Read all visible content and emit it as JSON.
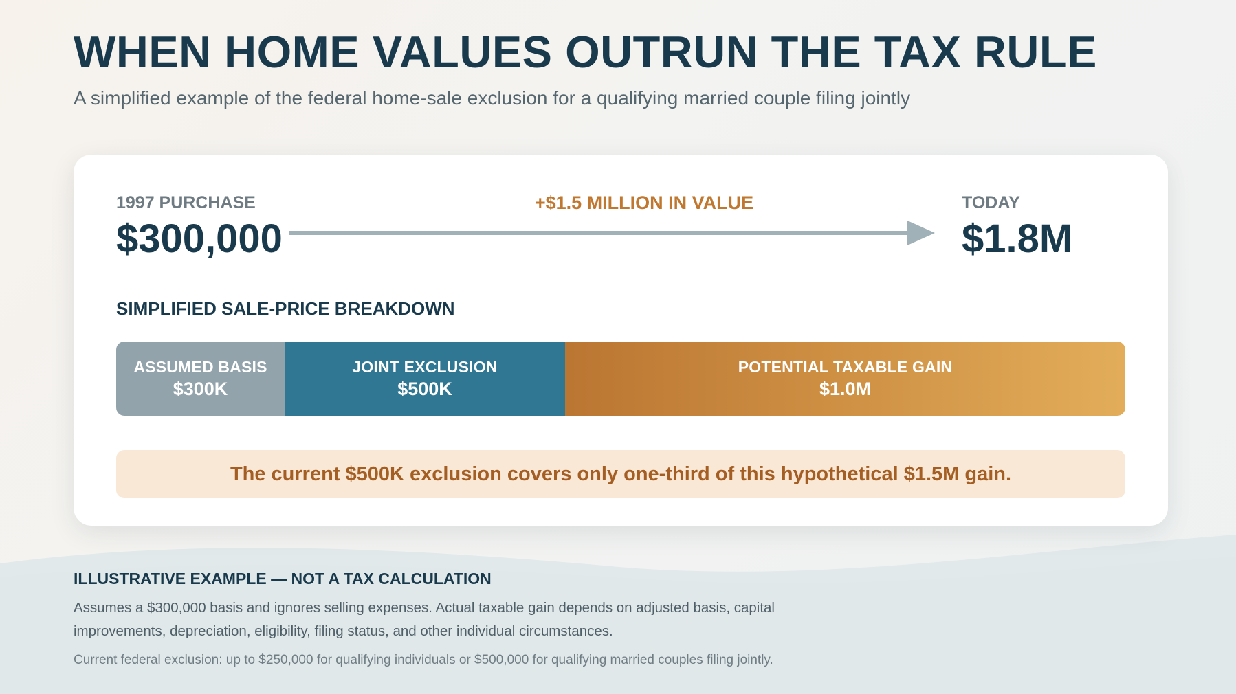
{
  "header": {
    "title": "WHEN HOME VALUES OUTRUN THE TAX RULE",
    "subtitle": "A simplified example of the federal home-sale exclusion for a qualifying married couple filing jointly"
  },
  "timeline": {
    "start_label": "1997 PURCHASE",
    "start_value": "$300,000",
    "change_label": "+$1.5 MILLION IN VALUE",
    "end_label": "TODAY",
    "end_value": "$1.8M"
  },
  "breakdown": {
    "heading": "SIMPLIFIED SALE-PRICE BREAKDOWN",
    "segments": [
      {
        "label": "ASSUMED BASIS",
        "value": "$300K",
        "amount_k": 300,
        "color": "#93a3ab"
      },
      {
        "label": "JOINT EXCLUSION",
        "value": "$500K",
        "amount_k": 500,
        "color": "#2f7793"
      },
      {
        "label": "POTENTIAL TAXABLE GAIN",
        "value": "$1.0M",
        "amount_k": 1000,
        "color": "#c98a3e"
      }
    ]
  },
  "callout": {
    "text": "The current $500K exclusion covers only one-third of this hypothetical $1.5M gain."
  },
  "footer": {
    "heading": "ILLUSTRATIVE EXAMPLE — NOT A TAX CALCULATION",
    "body": "Assumes a $300,000 basis and ignores selling expenses. Actual taxable gain depends on adjusted basis, capital improvements, depreciation, eligibility, filing status, and other individual circumstances.",
    "note": "Current federal exclusion: up to $250,000 for qualifying individuals or $500,000 for qualifying married couples filing jointly."
  },
  "colors": {
    "navy": "#193a4c",
    "accent_orange": "#c0772f",
    "callout_bg": "#f8e8d5",
    "arrow": "#a1b1b8"
  }
}
